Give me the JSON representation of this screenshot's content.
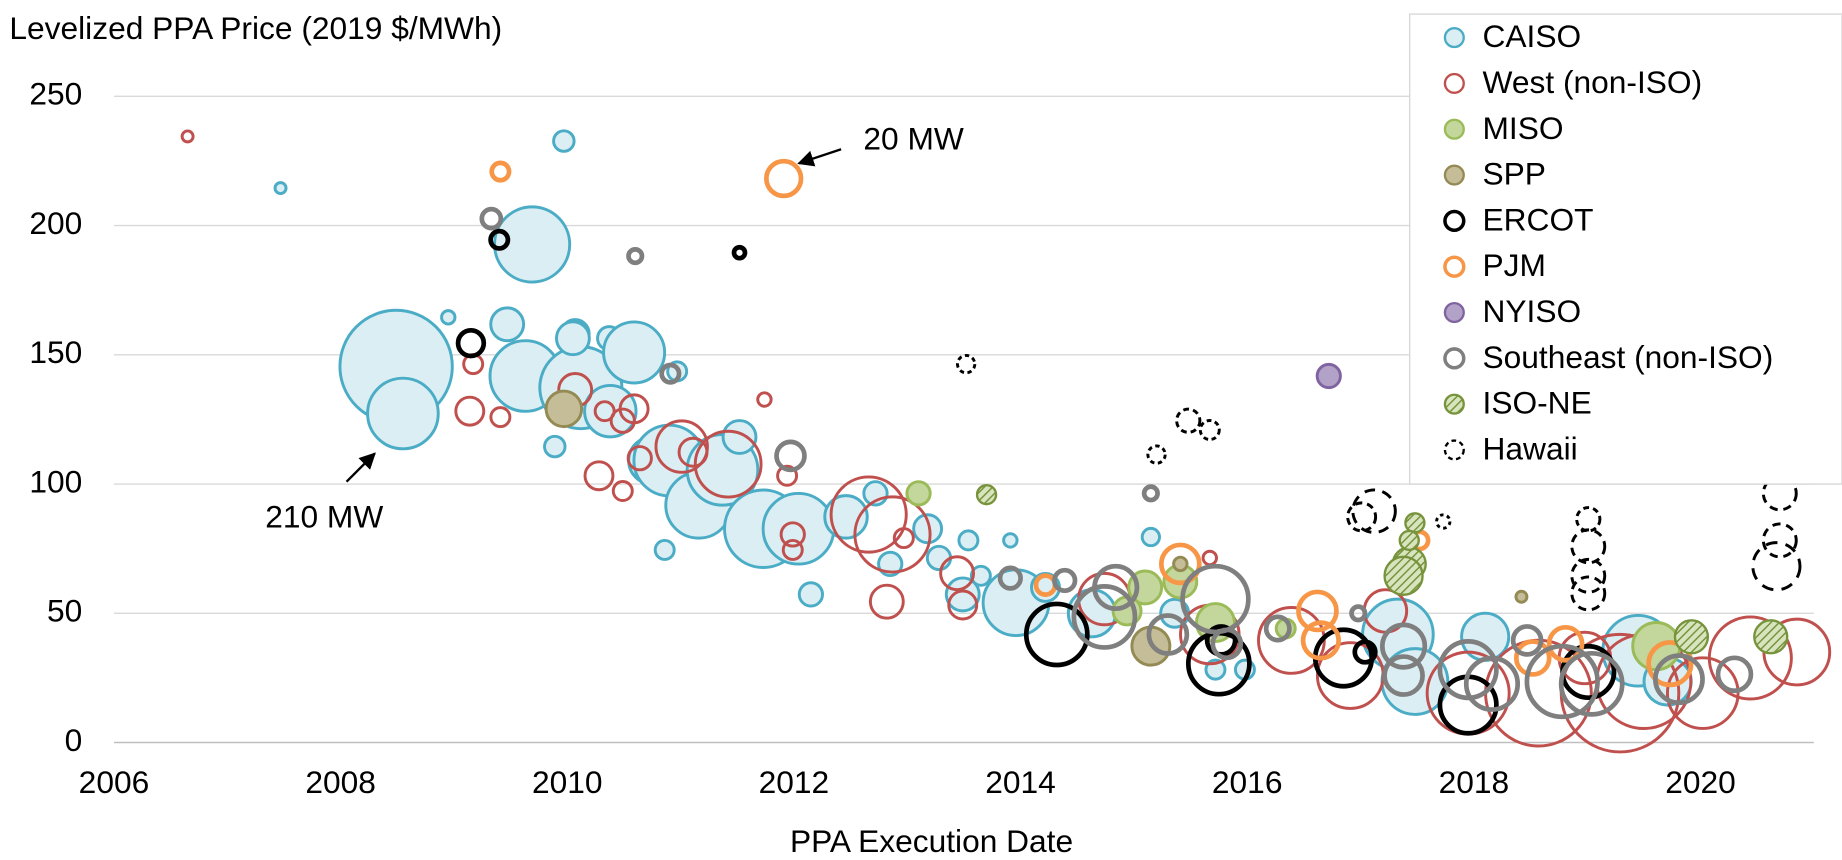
{
  "chart_data": {
    "type": "bubble",
    "y_label": "Levelized PPA Price (2019 $/MWh)",
    "x_label": "PPA Execution Date",
    "xlim": [
      2006,
      2021
    ],
    "xticks": [
      2006,
      2008,
      2010,
      2012,
      2014,
      2016,
      2018,
      2020
    ],
    "ylim": [
      0,
      250
    ],
    "yticks": [
      0,
      50,
      100,
      150,
      200,
      250
    ],
    "grid": true,
    "legend": "upper right",
    "annotations": [
      "210 MW",
      "20 MW"
    ],
    "series": [
      {
        "name": "CAISO",
        "color": "#4bacc6",
        "fill": "#dbeef4",
        "style": "filled",
        "x": [
          2007.47,
          2009.97,
          2009.69,
          2008.49,
          2008.55,
          2008.95,
          2009.47,
          2009.63,
          2010.12,
          2010.07,
          2010.05,
          2010.37,
          2010.59,
          2010.38,
          2009.89,
          2010.75,
          2010.97,
          2010.9,
          2011.16,
          2011.37,
          2011.52,
          2011.73,
          2012.04,
          2012.15,
          2010.86,
          2012.46,
          2012.72,
          2012.85,
          2013.18,
          2013.28,
          2013.49,
          2013.54,
          2013.65,
          2013.91,
          2013.96,
          2014.22,
          2014.63,
          2015.15,
          2015.36,
          2015.72,
          2015.98,
          2017.33,
          2017.48,
          2018.1,
          2019.45,
          2019.71
        ],
        "values": [
          214.5,
          232.7,
          192.7,
          145.5,
          127.3,
          164.5,
          161.8,
          141.8,
          137.3,
          158.2,
          156.4,
          156.4,
          150.9,
          128.2,
          114.5,
          109.1,
          143.6,
          109.1,
          91.8,
          105.5,
          118.2,
          82.7,
          82.7,
          57.3,
          74.5,
          87.3,
          96.4,
          69.1,
          82.7,
          71.4,
          57.3,
          78.2,
          64.5,
          78.2,
          54.1,
          60,
          50,
          79.5,
          50,
          28.2,
          28.2,
          41.8,
          23.6,
          40.9,
          35.5,
          23.6
        ],
        "sizes": [
          2,
          7,
          94,
          210,
          83,
          3,
          18,
          83,
          112,
          13,
          18,
          9,
          62,
          44,
          7,
          37,
          6,
          83,
          72,
          83,
          18,
          100,
          83,
          9,
          6,
          30,
          9,
          9,
          13,
          9,
          18,
          6,
          6,
          3,
          72,
          13,
          37,
          5,
          13,
          6,
          6,
          83,
          72,
          37,
          83,
          37
        ]
      },
      {
        "name": "West (non-ISO)",
        "color": "#c0504d",
        "fill": "none",
        "style": "hollow",
        "x": [
          2006.65,
          2009.17,
          2009.14,
          2009.41,
          2010.07,
          2010.28,
          2010.33,
          2010.49,
          2010.59,
          2010.64,
          2010.49,
          2011.01,
          2011.11,
          2011.42,
          2011.94,
          2011.74,
          2011.99,
          2011.99,
          2012.66,
          2012.87,
          2012.82,
          2012.97,
          2013.44,
          2013.49,
          2014.74,
          2015.67,
          2015.67,
          2016.39,
          2016.91,
          2017.22,
          2017.95,
          2018.57,
          2019.29,
          2019.5,
          2020.02,
          2020.44,
          2020.85,
          2018.98
        ],
        "values": [
          234.5,
          146.4,
          128.2,
          125.9,
          136.4,
          103.2,
          128.2,
          124.5,
          129.1,
          110,
          97.3,
          114.5,
          112.3,
          107.7,
          103.2,
          132.7,
          80.5,
          74.5,
          88.2,
          80.5,
          54.5,
          79.1,
          65.5,
          53.2,
          55.5,
          71.4,
          41.8,
          39.5,
          25.9,
          50.9,
          19.1,
          19.1,
          19.1,
          23.6,
          19.1,
          32.7,
          35,
          32.7
        ],
        "sizes": [
          2,
          6,
          13,
          6,
          18,
          13,
          6,
          9,
          13,
          9,
          6,
          44,
          13,
          72,
          6,
          3,
          9,
          6,
          94,
          94,
          18,
          6,
          18,
          13,
          44,
          3,
          57,
          72,
          72,
          30,
          112,
          186,
          230,
          147,
          83,
          112,
          72,
          44
        ]
      },
      {
        "name": "MISO",
        "color": "#9bbb59",
        "fill": "#c3d69b",
        "style": "filled",
        "x": [
          2013.1,
          2015.1,
          2015.41,
          2015.72,
          2019.61,
          2016.34,
          2014.94
        ],
        "values": [
          96.4,
          60,
          62.3,
          46.4,
          37.3,
          44.1,
          50.9
        ],
        "sizes": [
          9,
          18,
          18,
          24,
          37,
          6,
          13
        ]
      },
      {
        "name": "SPP",
        "color": "#948a54",
        "fill": "#c4bd97",
        "style": "filled",
        "x": [
          2009.97,
          2015.15,
          2018.42,
          2015.41
        ],
        "values": [
          129.1,
          37.3,
          56.4,
          69.1
        ],
        "sizes": [
          21,
          24,
          2,
          3
        ]
      },
      {
        "name": "ERCOT",
        "color": "#000000",
        "fill": "none",
        "style": "hollow-thick",
        "x": [
          2009.15,
          2009.4,
          2011.52,
          2014.32,
          2015.75,
          2016.85,
          2017.95,
          2017.04,
          2019.01,
          2015.77
        ],
        "values": [
          154.5,
          194.5,
          189.5,
          41.8,
          30.5,
          32.7,
          14.5,
          35,
          27.3,
          39.5
        ],
        "sizes": [
          11,
          5,
          2,
          62,
          62,
          53,
          53,
          7,
          44,
          13
        ]
      },
      {
        "name": "PJM",
        "color": "#f79646",
        "fill": "none",
        "style": "hollow-thick",
        "x": [
          2009.41,
          2011.91,
          2014.22,
          2015.41,
          2016.62,
          2016.65,
          2017.52,
          2018.52,
          2018.81,
          2019.73
        ],
        "values": [
          220.9,
          218.2,
          60.9,
          69.1,
          50.9,
          39.5,
          78.2,
          32.7,
          38.2,
          30.5
        ],
        "sizes": [
          5,
          20,
          6,
          24,
          24,
          21,
          5,
          18,
          18,
          30
        ]
      },
      {
        "name": "NYISO",
        "color": "#8064a2",
        "fill": "#b3a2c7",
        "style": "filled",
        "x": [
          2016.72
        ],
        "values": [
          141.8
        ],
        "sizes": [
          9
        ]
      },
      {
        "name": "Southeast (non-ISO)",
        "color": "#7f7f7f",
        "fill": "none",
        "style": "hollow-thick",
        "x": [
          2009.33,
          2010.6,
          2010.91,
          2011.97,
          2013.91,
          2014.39,
          2014.74,
          2014.84,
          2015.15,
          2015.3,
          2015.72,
          2015.82,
          2016.27,
          2016.98,
          2017.38,
          2017.38,
          2017.95,
          2018.47,
          2018.78,
          2019.04,
          2019.81,
          2020.3,
          2018.16
        ],
        "values": [
          202.7,
          188.2,
          142.7,
          110.9,
          63.6,
          62.7,
          48.6,
          60,
          96.4,
          41.8,
          55.5,
          38.2,
          44.1,
          50,
          37.3,
          25.9,
          28.2,
          39.5,
          23.6,
          22.7,
          24.5,
          26.4,
          22.7
        ],
        "sizes": [
          6,
          3,
          5,
          13,
          7,
          7,
          62,
          30,
          3,
          24,
          72,
          13,
          9,
          3,
          30,
          24,
          53,
          13,
          83,
          62,
          37,
          18,
          44
        ]
      },
      {
        "name": "ISO-NE",
        "color": "#77933c",
        "fill": "#9bbb59",
        "style": "hatched",
        "x": [
          2013.7,
          2017.43,
          2017.38,
          2017.48,
          2017.43,
          2019.92,
          2020.62
        ],
        "values": [
          95.9,
          69.1,
          64.5,
          85,
          78.2,
          40.9,
          40.9
        ],
        "sizes": [
          6,
          18,
          24,
          6,
          6,
          18,
          18
        ]
      },
      {
        "name": "Hawaii",
        "color": "#000000",
        "fill": "none",
        "style": "dashed",
        "x": [
          2013.52,
          2015.2,
          2015.48,
          2015.67,
          2017.12,
          2017.01,
          2017.73,
          2019.01,
          2019.01,
          2019.01,
          2019.01,
          2020.7,
          2020.7,
          2020.67
        ],
        "values": [
          146.4,
          111.4,
          124.5,
          120.9,
          89.5,
          87.3,
          85.5,
          86.4,
          75.9,
          64.5,
          57.7,
          96.4,
          78.2,
          68.2
        ],
        "sizes": [
          5,
          5,
          9,
          6,
          30,
          13,
          3,
          9,
          18,
          18,
          18,
          18,
          18,
          37
        ]
      }
    ]
  }
}
